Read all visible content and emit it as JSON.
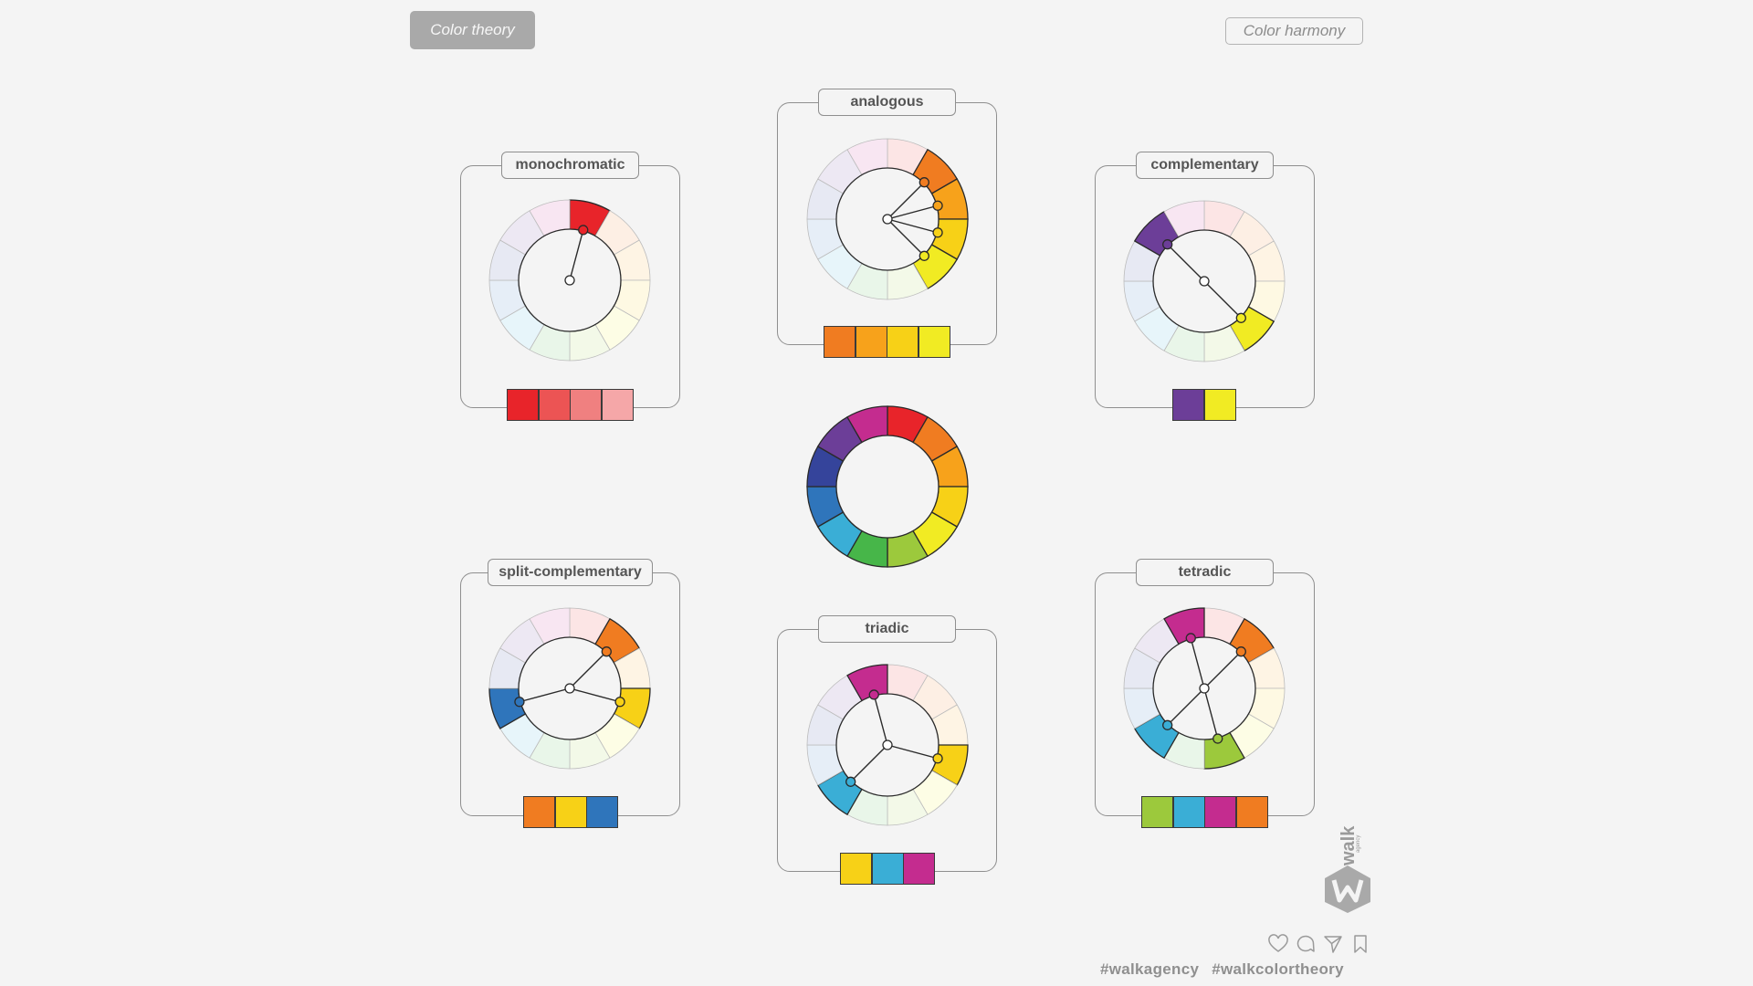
{
  "header": {
    "left_tag": "Color theory",
    "right_tag": "Color harmony"
  },
  "wheel_colors": [
    "#e8242a",
    "#f07c21",
    "#f7a21b",
    "#f7d117",
    "#f1eb23",
    "#9cc93c",
    "#47b649",
    "#3aaed6",
    "#2f75bb",
    "#35449b",
    "#6c3e98",
    "#c42c8f"
  ],
  "panels": [
    {
      "id": "monochromatic",
      "title": "monochromatic",
      "active": [
        0
      ],
      "markers": [
        0
      ],
      "swatches": [
        "#e8242a",
        "#ec5454",
        "#f08080",
        "#f5a7a8"
      ]
    },
    {
      "id": "analogous",
      "title": "analogous",
      "active": [
        1,
        2,
        3,
        4
      ],
      "markers": [
        1,
        2,
        3,
        4
      ],
      "swatches": [
        "#f07c21",
        "#f7a21b",
        "#f7d117",
        "#f1eb23"
      ]
    },
    {
      "id": "complementary",
      "title": "complementary",
      "active": [
        10,
        4
      ],
      "markers": [
        10,
        4
      ],
      "swatches": [
        "#6c3e98",
        "#f1eb23"
      ]
    },
    {
      "id": "split-complementary",
      "title": "split-complementary",
      "active": [
        1,
        3,
        8
      ],
      "markers": [
        1,
        3,
        8
      ],
      "swatches": [
        "#f07c21",
        "#f7d117",
        "#2f75bb"
      ]
    },
    {
      "id": "triadic",
      "title": "triadic",
      "active": [
        11,
        3,
        7
      ],
      "markers": [
        11,
        3,
        7
      ],
      "swatches": [
        "#f7d117",
        "#3aaed6",
        "#c42c8f"
      ]
    },
    {
      "id": "tetradic",
      "title": "tetradic",
      "active": [
        11,
        1,
        5,
        7
      ],
      "markers": [
        11,
        1,
        5,
        7
      ],
      "swatches": [
        "#9cc93c",
        "#3aaed6",
        "#c42c8f",
        "#f07c21"
      ]
    }
  ],
  "hashtags": [
    "#walkagency",
    "#walkcolortheory"
  ],
  "icons": [
    "heart-icon",
    "comment-icon",
    "share-icon",
    "bookmark-icon"
  ],
  "logo": {
    "name": "walk-logo",
    "text": "walk",
    "subtext": "agency"
  }
}
